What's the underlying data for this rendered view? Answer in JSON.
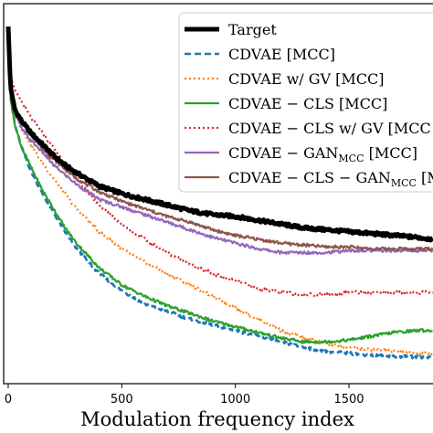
{
  "chart_data": {
    "type": "line",
    "xlabel": "Modulation frequency index",
    "x_ticks": [
      0,
      500,
      1000,
      1500
    ],
    "x_tick_labels": [
      "0",
      "500",
      "1000",
      "1500"
    ],
    "xlim": [
      -20,
      1870
    ],
    "ylim": [
      0,
      1
    ],
    "legend_position": "top-right",
    "series": [
      {
        "name": "Target",
        "color": "#000000",
        "style": "solid-thick",
        "x": [
          0,
          10,
          30,
          60,
          100,
          150,
          200,
          250,
          300,
          400,
          500,
          600,
          700,
          800,
          900,
          1000,
          1100,
          1200,
          1300,
          1400,
          1500,
          1600,
          1700,
          1800,
          1870
        ],
        "y": [
          0.94,
          0.78,
          0.72,
          0.69,
          0.66,
          0.63,
          0.6,
          0.575,
          0.555,
          0.52,
          0.5,
          0.485,
          0.47,
          0.455,
          0.445,
          0.44,
          0.43,
          0.42,
          0.41,
          0.405,
          0.4,
          0.395,
          0.39,
          0.385,
          0.38
        ]
      },
      {
        "name": "CDVAE[MCC]",
        "color": "#1f77b4",
        "style": "dashed",
        "x": [
          0,
          10,
          30,
          60,
          100,
          150,
          200,
          250,
          300,
          400,
          500,
          600,
          700,
          800,
          900,
          1000,
          1100,
          1200,
          1300,
          1400,
          1500,
          1600,
          1700,
          1800,
          1870
        ],
        "y": [
          0.94,
          0.75,
          0.68,
          0.62,
          0.56,
          0.5,
          0.45,
          0.4,
          0.355,
          0.29,
          0.245,
          0.21,
          0.19,
          0.17,
          0.155,
          0.14,
          0.125,
          0.11,
          0.095,
          0.085,
          0.08,
          0.075,
          0.072,
          0.07,
          0.07
        ]
      },
      {
        "name": "CDVAE w/GV[MCC]",
        "color": "#ff7f0e",
        "style": "dotted",
        "x": [
          0,
          10,
          30,
          60,
          100,
          150,
          200,
          250,
          300,
          400,
          500,
          600,
          700,
          800,
          900,
          1000,
          1100,
          1200,
          1300,
          1400,
          1500,
          1600,
          1700,
          1800,
          1870
        ],
        "y": [
          0.94,
          0.77,
          0.71,
          0.67,
          0.63,
          0.58,
          0.54,
          0.5,
          0.46,
          0.4,
          0.355,
          0.32,
          0.29,
          0.26,
          0.23,
          0.2,
          0.17,
          0.14,
          0.12,
          0.105,
          0.095,
          0.09,
          0.085,
          0.08,
          0.08
        ]
      },
      {
        "name": "CDVAE − CLS[MCC]",
        "color": "#2ca02c",
        "style": "solid",
        "x": [
          0,
          10,
          30,
          60,
          100,
          150,
          200,
          250,
          300,
          400,
          500,
          600,
          700,
          800,
          900,
          1000,
          1100,
          1200,
          1300,
          1400,
          1500,
          1600,
          1700,
          1800,
          1870
        ],
        "y": [
          0.94,
          0.75,
          0.68,
          0.62,
          0.57,
          0.51,
          0.46,
          0.41,
          0.37,
          0.305,
          0.26,
          0.23,
          0.205,
          0.185,
          0.165,
          0.15,
          0.135,
          0.12,
          0.11,
          0.11,
          0.115,
          0.125,
          0.135,
          0.14,
          0.14
        ]
      },
      {
        "name": "CDVAE − CLS w/GV[MCC]",
        "color": "#d62728",
        "style": "dotted",
        "x": [
          0,
          10,
          30,
          60,
          100,
          150,
          200,
          250,
          300,
          400,
          500,
          600,
          700,
          800,
          900,
          1000,
          1100,
          1200,
          1300,
          1400,
          1500,
          1600,
          1700,
          1800,
          1870
        ],
        "y": [
          0.94,
          0.81,
          0.77,
          0.74,
          0.7,
          0.66,
          0.62,
          0.58,
          0.54,
          0.47,
          0.42,
          0.38,
          0.345,
          0.315,
          0.29,
          0.27,
          0.25,
          0.24,
          0.235,
          0.235,
          0.24,
          0.24,
          0.24,
          0.24,
          0.24
        ]
      },
      {
        "name": "CDVAE − GAN_MCC[MCC]",
        "color": "#9467bd",
        "style": "solid",
        "x": [
          0,
          10,
          30,
          60,
          100,
          150,
          200,
          250,
          300,
          400,
          500,
          600,
          700,
          800,
          900,
          1000,
          1100,
          1200,
          1300,
          1400,
          1500,
          1600,
          1700,
          1800,
          1870
        ],
        "y": [
          0.94,
          0.76,
          0.71,
          0.67,
          0.64,
          0.61,
          0.575,
          0.55,
          0.525,
          0.485,
          0.465,
          0.445,
          0.425,
          0.405,
          0.385,
          0.37,
          0.355,
          0.345,
          0.345,
          0.345,
          0.35,
          0.35,
          0.35,
          0.35,
          0.35
        ]
      },
      {
        "name": "CDVAE − CLS − GAN_MCC[MCC]",
        "color": "#8c564b",
        "style": "solid",
        "x": [
          0,
          10,
          30,
          60,
          100,
          150,
          200,
          250,
          300,
          400,
          500,
          600,
          700,
          800,
          900,
          1000,
          1100,
          1200,
          1300,
          1400,
          1500,
          1600,
          1700,
          1800,
          1870
        ],
        "y": [
          0.94,
          0.77,
          0.72,
          0.685,
          0.655,
          0.62,
          0.59,
          0.565,
          0.54,
          0.505,
          0.48,
          0.46,
          0.44,
          0.425,
          0.405,
          0.39,
          0.38,
          0.37,
          0.365,
          0.36,
          0.36,
          0.355,
          0.355,
          0.355,
          0.355
        ]
      }
    ]
  },
  "legend": [
    {
      "main": "Target",
      "sub": "",
      "tail": ""
    },
    {
      "main": "CDVAE [MCC]",
      "sub": "",
      "tail": ""
    },
    {
      "main": "CDVAE w/ GV [MCC]",
      "sub": "",
      "tail": ""
    },
    {
      "main": "CDVAE − CLS [MCC]",
      "sub": "",
      "tail": ""
    },
    {
      "main": "CDVAE − CLS w/ GV [MCC",
      "sub": "",
      "tail": ""
    },
    {
      "main": "CDVAE − GAN",
      "sub": "MCC",
      "tail": " [MCC]"
    },
    {
      "main": "CDVAE − CLS − GAN",
      "sub": "MCC",
      "tail": " [MC"
    }
  ]
}
